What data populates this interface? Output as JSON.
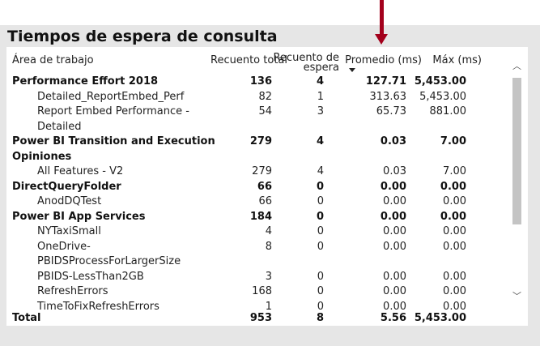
{
  "title": "Tiempos de espera de consulta",
  "columns": {
    "area": "Área de trabajo",
    "count": "Recuento total",
    "wait_line1": "Recuento de",
    "wait_line2": "espera",
    "avg": "Promedio (ms)",
    "max": "Máx (ms)"
  },
  "rows": [
    {
      "level": "group",
      "lines": [
        "Performance Effort 2018"
      ],
      "count": "136",
      "wait": "4",
      "avg": "127.71",
      "max": "5,453.00"
    },
    {
      "level": "item",
      "lines": [
        "Detailed_ReportEmbed_Perf"
      ],
      "count": "82",
      "wait": "1",
      "avg": "313.63",
      "max": "5,453.00"
    },
    {
      "level": "item",
      "lines": [
        "Report Embed Performance -",
        "Detailed"
      ],
      "count": "54",
      "wait": "3",
      "avg": "65.73",
      "max": "881.00"
    },
    {
      "level": "group",
      "lines": [
        "Power BI Transition and Execution",
        "Opiniones"
      ],
      "count": "279",
      "wait": "4",
      "avg": "0.03",
      "max": "7.00"
    },
    {
      "level": "item",
      "lines": [
        "All Features - V2"
      ],
      "count": "279",
      "wait": "4",
      "avg": "0.03",
      "max": "7.00"
    },
    {
      "level": "group",
      "lines": [
        "DirectQueryFolder"
      ],
      "count": "66",
      "wait": "0",
      "avg": "0.00",
      "max": "0.00"
    },
    {
      "level": "item",
      "lines": [
        "AnodDQTest"
      ],
      "count": "66",
      "wait": "0",
      "avg": "0.00",
      "max": "0.00"
    },
    {
      "level": "group",
      "lines": [
        "Power BI App Services"
      ],
      "count": "184",
      "wait": "0",
      "avg": "0.00",
      "max": "0.00"
    },
    {
      "level": "item",
      "lines": [
        "NYTaxiSmall"
      ],
      "count": "4",
      "wait": "0",
      "avg": "0.00",
      "max": "0.00"
    },
    {
      "level": "item",
      "lines": [
        "OneDrive-",
        "PBIDSProcessForLargerSize"
      ],
      "count": "8",
      "wait": "0",
      "avg": "0.00",
      "max": "0.00"
    },
    {
      "level": "item",
      "lines": [
        "PBIDS-LessThan2GB"
      ],
      "count": "3",
      "wait": "0",
      "avg": "0.00",
      "max": "0.00"
    },
    {
      "level": "item",
      "lines": [
        "RefreshErrors"
      ],
      "count": "168",
      "wait": "0",
      "avg": "0.00",
      "max": "0.00"
    },
    {
      "level": "item",
      "lines": [
        "TimeToFixRefreshErrors"
      ],
      "count": "1",
      "wait": "0",
      "avg": "0.00",
      "max": "0.00"
    }
  ],
  "total": {
    "label": "Total",
    "count": "953",
    "wait": "8",
    "avg": "5.56",
    "max": "5,453.00"
  },
  "scrollbar": {
    "up_icon": "chevron-up-icon",
    "down_icon": "chevron-down-icon",
    "position": 0
  }
}
